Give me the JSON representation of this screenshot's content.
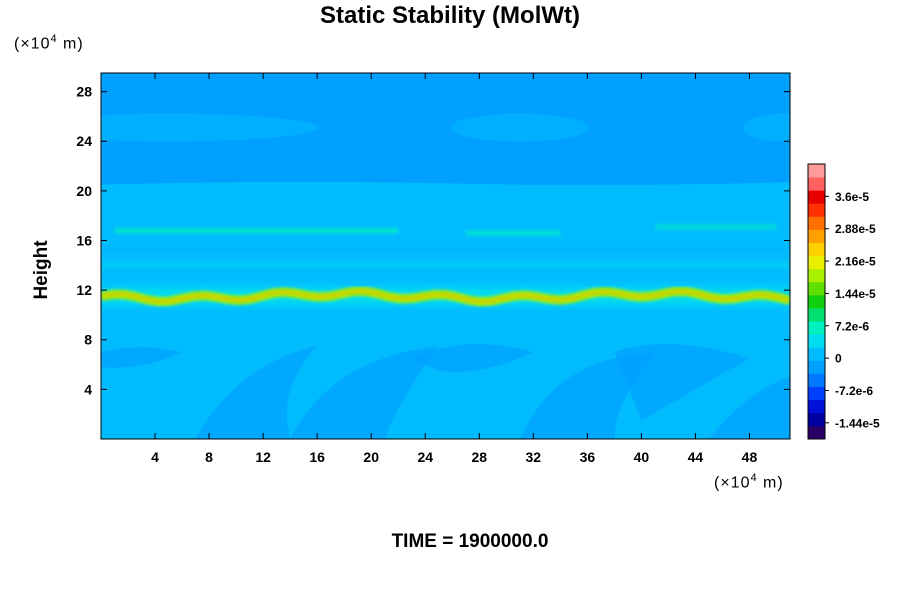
{
  "chart_data": {
    "type": "heatmap",
    "title": "Static Stability (MolWt)",
    "ylabel": "Height",
    "xlabel": "",
    "x_unit_prefix": "(×10",
    "x_unit_exp": "4",
    "x_unit_suffix": " m)",
    "y_unit_prefix": "(×10",
    "y_unit_exp": "4",
    "y_unit_suffix": " m)",
    "xlim": [
      0,
      51
    ],
    "ylim": [
      0,
      29.5
    ],
    "x_ticks": [
      "4",
      "8",
      "12",
      "16",
      "20",
      "24",
      "28",
      "32",
      "36",
      "40",
      "44",
      "48"
    ],
    "y_ticks": [
      "4",
      "8",
      "12",
      "16",
      "20",
      "24",
      "28"
    ],
    "colorbar": {
      "min": -1.8e-05,
      "max": 4.32e-05,
      "tick_labels": [
        "3.6e-5",
        "2.88e-5",
        "2.16e-5",
        "1.44e-5",
        "7.2e-6",
        "0",
        "-7.2e-6",
        "-1.44e-5"
      ],
      "tick_values": [
        3.6e-05,
        2.88e-05,
        2.16e-05,
        1.44e-05,
        7.2e-06,
        0,
        -7.2e-06,
        -1.44e-05
      ],
      "colors": [
        "#2a0066",
        "#0000a0",
        "#0010d8",
        "#0040ff",
        "#0078ff",
        "#00a0ff",
        "#00bcff",
        "#00dcf0",
        "#00f0c0",
        "#00e070",
        "#10d010",
        "#60e000",
        "#a8f000",
        "#e8f000",
        "#ffd000",
        "#ffa000",
        "#ff7000",
        "#ff3000",
        "#e80000",
        "#ff6060",
        "#ff9a9a"
      ]
    },
    "field_description": {
      "background_value": 0.0,
      "upper_layer_value": -2e-06,
      "layers": [
        {
          "height": 11.5,
          "value": 1.8e-05
        },
        {
          "height": 16.8,
          "value": 6e-06
        },
        {
          "height": 14.0,
          "value": 3e-06
        }
      ]
    },
    "time_label": "TIME = 1900000.0"
  }
}
